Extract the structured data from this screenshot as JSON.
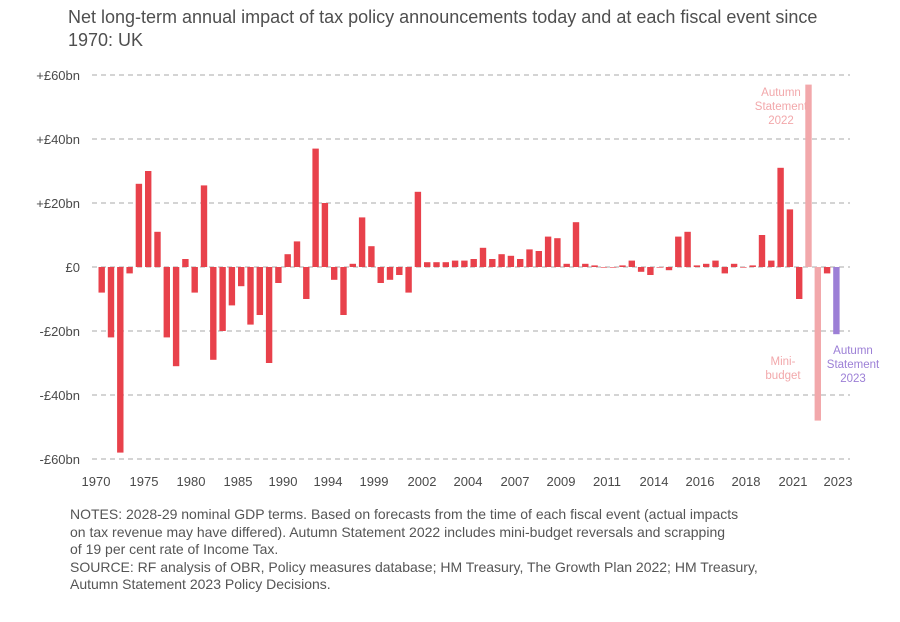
{
  "chart_data": {
    "type": "bar",
    "title": "Net long-term annual impact of tax policy announcements today and at each fiscal event since 1970: UK",
    "xlabel": "",
    "ylabel": "",
    "ylim": [
      -60,
      60
    ],
    "yticks": [
      60,
      40,
      20,
      0,
      -20,
      -40,
      -60
    ],
    "ytick_labels": [
      "+£60bn",
      "+£40bn",
      "+£20bn",
      "£0",
      "-£20bn",
      "-£40bn",
      "-£60bn"
    ],
    "xticks": [
      1970,
      1975,
      1980,
      1985,
      1990,
      1994,
      1999,
      2002,
      2004,
      2007,
      2009,
      2011,
      2014,
      2016,
      2018,
      2021,
      2023
    ],
    "grid": true,
    "values": [
      -8,
      -22,
      -58,
      -2,
      26,
      30,
      11,
      -22,
      -31,
      2.5,
      -8,
      25.5,
      -29,
      -20,
      -12,
      -6,
      -18,
      -15,
      -30,
      -5,
      4,
      8,
      -10,
      37,
      20,
      -4,
      -15,
      1,
      15.5,
      6.5,
      -5,
      -4,
      -2.5,
      -8,
      23.5,
      1.5,
      1.5,
      1.5,
      2,
      2,
      2.5,
      6,
      2.5,
      4,
      3.5,
      2.5,
      5.5,
      5,
      9.5,
      9,
      1,
      14,
      1,
      0.5,
      0,
      0,
      0.5,
      2,
      -1.5,
      -2.5,
      0,
      -1,
      9.5,
      11,
      0.5,
      1,
      2,
      -2,
      1,
      0,
      0.5,
      10,
      2,
      31,
      18,
      -10,
      57,
      -48,
      -2,
      -21
    ],
    "colors": {
      "default": "#e8414b",
      "autumn_statement_2022": "#f2a8ab",
      "mini_budget": "#f2a8ab",
      "autumn_statement_2023": "#9c7fd6",
      "grid": "#a8a8a8",
      "axis_text": "#4a4a4a"
    },
    "annotations": [
      {
        "lines": [
          "Autumn",
          "Statement",
          "2022"
        ],
        "color": "#f2a8ab"
      },
      {
        "lines": [
          "Mini-",
          "budget"
        ],
        "color": "#f2a8ab"
      },
      {
        "lines": [
          "Autumn",
          "Statement",
          "2023"
        ],
        "color": "#9c7fd6"
      }
    ]
  },
  "notes": {
    "line1": "NOTES: 2028-29 nominal GDP terms. Based on forecasts from the time of each fiscal event (actual impacts",
    "line2": "on tax revenue may have differed). Autumn Statement 2022 includes mini-budget reversals and scrapping",
    "line3": "of 19 per cent rate of Income Tax.",
    "line4": "SOURCE: RF analysis of OBR, Policy measures database; HM Treasury, The Growth Plan 2022; HM Treasury,",
    "line5": "Autumn Statement 2023 Policy Decisions."
  }
}
